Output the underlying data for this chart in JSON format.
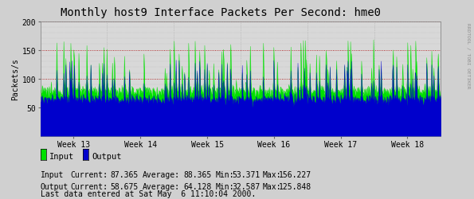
{
  "title": "Monthly host9 Interface Packets Per Second: hme0",
  "ylabel": "Packets/s",
  "ylim": [
    0,
    200
  ],
  "yticks": [
    50,
    100,
    150,
    200
  ],
  "week_labels": [
    "Week 13",
    "Week 14",
    "Week 15",
    "Week 16",
    "Week 17",
    "Week 18"
  ],
  "bg_color": "#d0d0d0",
  "plot_bg_color": "#d8d8d8",
  "grid_h_color": "#aa0000",
  "grid_v_color": "#aaaaaa",
  "input_color": "#00e000",
  "output_color": "#0000cc",
  "title_font": "monospace",
  "title_fontsize": 10,
  "label_fontsize": 7,
  "legend_fontsize": 7.5,
  "stats_fontsize": 7,
  "input_current": "87.365",
  "input_average": "88.365",
  "input_min": "53.371",
  "input_max": "156.227",
  "output_current": "58.675",
  "output_average": "64.128",
  "output_min": "32.587",
  "output_max": "125.848",
  "last_data": "Last data entered at Sat May  6 11:10:04 2000.",
  "watermark": "RRDTOOL / TOBI OETIKER",
  "num_points": 800,
  "input_base": 78,
  "input_noise": 5,
  "output_base": 64,
  "output_noise": 4
}
